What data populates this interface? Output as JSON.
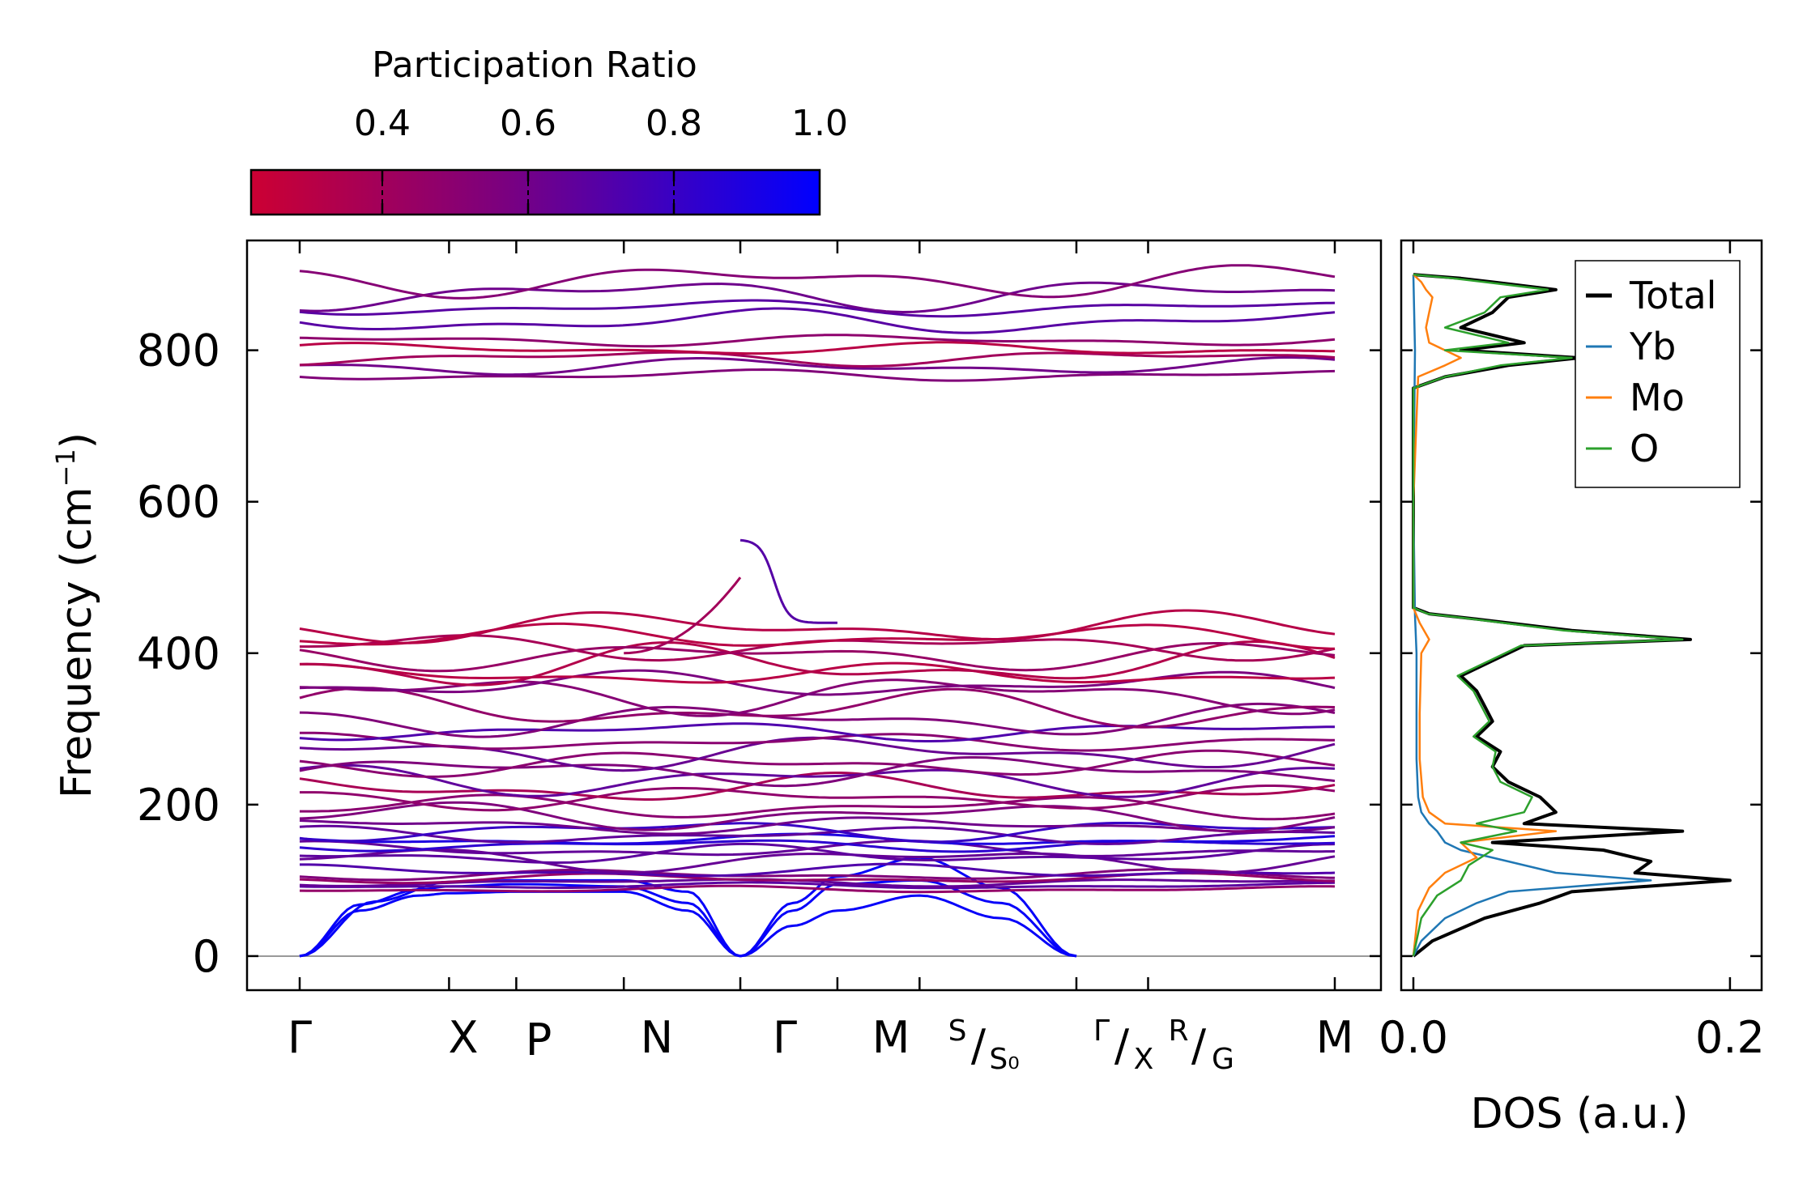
{
  "chart_data": [
    {
      "type": "line",
      "title": "",
      "ylabel": "Frequency (cm⁻¹)",
      "ylabel_main": "Frequency (cm",
      "ylabel_sup": "−1",
      "ylabel_close": ")",
      "ylim": [
        -45,
        945
      ],
      "yticks": [
        "0",
        "200",
        "400",
        "600",
        "800"
      ],
      "yticks_values": [
        0,
        200,
        400,
        600,
        800
      ],
      "kpath_labels": [
        "Γ",
        "X",
        "P",
        "N",
        "Γ",
        "M",
        "S/S₀",
        "Γ/X",
        "R/G",
        "M"
      ],
      "kpath_positions": [
        0.0,
        1.0,
        1.45,
        2.17,
        2.95,
        3.6,
        4.15,
        5.2,
        5.68,
        6.93
      ],
      "kpath_label_parts": {
        "g1": "Γ",
        "x": "X",
        "p": "P",
        "n": "N",
        "g2": "Γ",
        "m1": "M",
        "s_top": "S",
        "s_slash": "/",
        "s_bottom": "S₀",
        "gx_top": "Γ",
        "gx_slash": "/",
        "gx_bottom": "X",
        "rg_top": "R",
        "rg_slash": "/",
        "rg_bottom": "G",
        "m2": "M"
      },
      "colorbar": {
        "label": "Participation Ratio",
        "ticks": [
          "0.4",
          "0.6",
          "0.8",
          "1.0"
        ],
        "tick_values": [
          0.4,
          0.6,
          0.8,
          1.0
        ],
        "range": [
          0.22,
          1.0
        ],
        "color_low": "#cc0033",
        "color_mid": "#7a0080",
        "color_high": "#0000ff"
      },
      "acoustic_branches": [
        {
          "x": [
            0,
            0.4,
            0.8,
            1.0,
            1.45,
            2.17,
            2.6,
            2.95
          ],
          "y": [
            0,
            60,
            80,
            83,
            85,
            85,
            60,
            0
          ]
        },
        {
          "x": [
            0,
            0.4,
            0.8,
            1.0,
            1.45,
            2.17,
            2.6,
            2.95
          ],
          "y": [
            0,
            68,
            88,
            92,
            95,
            92,
            70,
            0
          ]
        },
        {
          "x": [
            0,
            0.5,
            1.0,
            1.45,
            2.17,
            2.6,
            2.95
          ],
          "y": [
            0,
            72,
            98,
            100,
            100,
            85,
            0
          ]
        },
        {
          "x": [
            2.95,
            3.3,
            3.6,
            4.15,
            4.7,
            5.2
          ],
          "y": [
            0,
            40,
            60,
            80,
            50,
            0
          ]
        },
        {
          "x": [
            2.95,
            3.3,
            3.6,
            4.15,
            4.7,
            5.2
          ],
          "y": [
            0,
            60,
            95,
            100,
            70,
            0
          ]
        },
        {
          "x": [
            2.95,
            3.3,
            3.6,
            4.15,
            4.7,
            5.2
          ],
          "y": [
            0,
            70,
            105,
            130,
            90,
            0
          ]
        }
      ],
      "dos": {
        "xlabel": "DOS (a.u.)",
        "xlim": [
          0.0,
          0.22
        ],
        "xticks": [
          "0.0",
          "0.2"
        ],
        "xticks_values": [
          0.0,
          0.2
        ],
        "legend_position": "top-right",
        "series": [
          {
            "name": "Total",
            "color": "#000000",
            "freq": [
              0,
              20,
              50,
              70,
              85,
              100,
              110,
              125,
              140,
              150,
              165,
              175,
              190,
              210,
              230,
              250,
              270,
              290,
              310,
              330,
              350,
              370,
              390,
              410,
              418,
              430,
              445,
              452,
              460,
              600,
              750,
              765,
              780,
              790,
              800,
              810,
              830,
              850,
              870,
              880,
              890,
              895,
              900
            ],
            "value": [
              0.0,
              0.012,
              0.045,
              0.08,
              0.1,
              0.2,
              0.14,
              0.15,
              0.12,
              0.05,
              0.17,
              0.07,
              0.09,
              0.08,
              0.06,
              0.05,
              0.055,
              0.04,
              0.05,
              0.045,
              0.04,
              0.03,
              0.05,
              0.07,
              0.175,
              0.1,
              0.04,
              0.01,
              0.0,
              0.0,
              0.0,
              0.02,
              0.06,
              0.105,
              0.03,
              0.07,
              0.03,
              0.05,
              0.06,
              0.09,
              0.05,
              0.03,
              0.0
            ]
          },
          {
            "name": "Yb",
            "color": "#1f77b4",
            "freq": [
              0,
              20,
              50,
              70,
              85,
              100,
              110,
              125,
              140,
              150,
              165,
              175,
              190,
              210,
              260,
              320,
              400,
              450,
              600,
              800,
              900
            ],
            "value": [
              0.0,
              0.005,
              0.02,
              0.04,
              0.06,
              0.15,
              0.09,
              0.06,
              0.03,
              0.02,
              0.015,
              0.01,
              0.005,
              0.003,
              0.002,
              0.002,
              0.002,
              0.001,
              0.0,
              0.001,
              0.0
            ]
          },
          {
            "name": "Mo",
            "color": "#ff7f0e",
            "freq": [
              0,
              60,
              90,
              110,
              130,
              150,
              165,
              175,
              190,
              210,
              260,
              320,
              400,
              418,
              440,
              460,
              600,
              765,
              780,
              790,
              800,
              810,
              830,
              850,
              870,
              880,
              890,
              900
            ],
            "value": [
              0.0,
              0.003,
              0.01,
              0.02,
              0.04,
              0.03,
              0.09,
              0.02,
              0.01,
              0.006,
              0.004,
              0.004,
              0.005,
              0.01,
              0.004,
              0.0,
              0.0,
              0.003,
              0.02,
              0.03,
              0.02,
              0.01,
              0.008,
              0.01,
              0.012,
              0.008,
              0.005,
              0.0
            ]
          },
          {
            "name": "O",
            "color": "#2ca02c",
            "freq": [
              0,
              50,
              80,
              100,
              120,
              140,
              150,
              165,
              175,
              190,
              210,
              230,
              250,
              270,
              290,
              310,
              330,
              350,
              370,
              390,
              410,
              418,
              430,
              445,
              452,
              460,
              600,
              750,
              765,
              780,
              790,
              800,
              810,
              830,
              850,
              870,
              880,
              890,
              895,
              900
            ],
            "value": [
              0.0,
              0.005,
              0.015,
              0.03,
              0.035,
              0.05,
              0.03,
              0.065,
              0.04,
              0.07,
              0.075,
              0.055,
              0.05,
              0.052,
              0.038,
              0.048,
              0.043,
              0.038,
              0.028,
              0.048,
              0.068,
              0.17,
              0.095,
              0.038,
              0.009,
              0.0,
              0.0,
              0.0,
              0.02,
              0.055,
              0.1,
              0.02,
              0.06,
              0.02,
              0.045,
              0.055,
              0.085,
              0.045,
              0.025,
              0.0
            ]
          }
        ]
      }
    }
  ]
}
